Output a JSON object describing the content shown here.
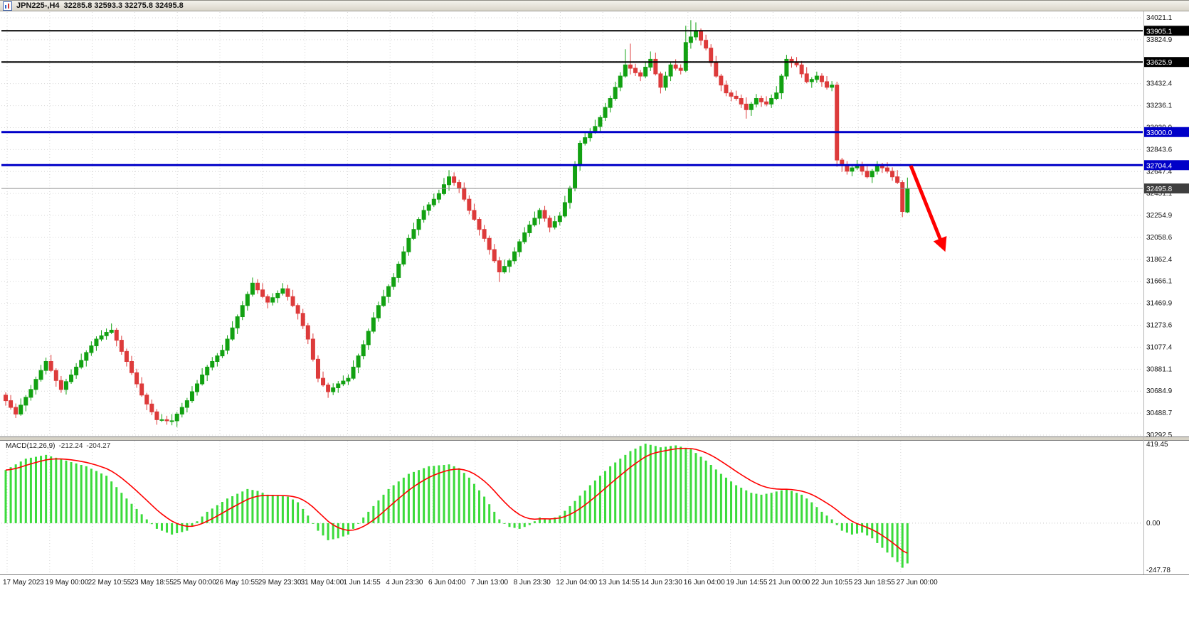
{
  "titlebar": {
    "symbol": "JPN225-,H4",
    "ohlc": "32285.8 32593.3 32275.8 32495.8"
  },
  "icons": {
    "titlebar_chart": "candlestick-chart"
  },
  "colors": {
    "background": "#FFFFFF",
    "grid": "#D6D6D6",
    "bull": "#12A112",
    "bear": "#DD3B3B",
    "macd_histogram": "#3BDB3B",
    "signal": "#FF0000",
    "level_black": "#000000",
    "level_blue": "#0000C8",
    "current_price_line": "#909090",
    "current_price_tag": "#3F3F3F",
    "annotation_red": "#FF0000",
    "splitter": "#D6D2C6",
    "chrome_line": "#808080"
  },
  "indicator": {
    "name": "MACD(12,26,9)",
    "macd_value": "-212.24",
    "signal_value": "-204.27"
  },
  "annotation": {
    "type": "arrow-down-right",
    "color": "#FF0000"
  },
  "chart_data": {
    "type": "candlestick",
    "symbol": "JPN225-",
    "timeframe": "H4",
    "title": "JPN225-,H4 32285.8 32593.3 32275.8 32495.8",
    "last_candle": {
      "open": 32285.8,
      "high": 32593.3,
      "low": 32275.8,
      "close": 32495.8
    },
    "legend_position": "none",
    "grid": true,
    "price_axis": {
      "max": 34021.1,
      "min": 30292.5,
      "tick_labels": [
        "34021.1",
        "33824.9",
        "33628.6",
        "33432.4",
        "33236.1",
        "33039.9",
        "32843.6",
        "32647.4",
        "32451.1",
        "32254.9",
        "32058.6",
        "31862.4",
        "31666.1",
        "31469.9",
        "31273.6",
        "31077.4",
        "30881.1",
        "30684.9",
        "30488.7",
        "30292.5"
      ]
    },
    "time_labels": [
      "17 May 2023",
      "19 May 00:00",
      "22 May 10:55",
      "23 May 18:55",
      "25 May 00:00",
      "26 May 10:55",
      "29 May 23:30",
      "31 May 04:00",
      "1 Jun 14:55",
      "4 Jun 23:30",
      "6 Jun 04:00",
      "7 Jun 13:00",
      "8 Jun 23:30",
      "12 Jun 04:00",
      "13 Jun 14:55",
      "14 Jun 23:30",
      "16 Jun 04:00",
      "19 Jun 14:55",
      "21 Jun 00:00",
      "22 Jun 10:55",
      "23 Jun 18:55",
      "27 Jun 00:00"
    ],
    "horizontal_lines": [
      {
        "price": 33905.1,
        "label": "33905.1",
        "color": "#000000",
        "width": 2
      },
      {
        "price": 33625.9,
        "label": "33625.9",
        "color": "#000000",
        "width": 2
      },
      {
        "price": 33000.0,
        "label": "33000.0",
        "color": "#0000C8",
        "width": 3
      },
      {
        "price": 32704.4,
        "label": "32704.4",
        "color": "#0000C8",
        "width": 3
      }
    ],
    "current_price": {
      "value": 32495.8,
      "label": "32495.8"
    },
    "candles": [
      [
        30650,
        30675,
        30555,
        30600
      ],
      [
        30600,
        30650,
        30520,
        30540
      ],
      [
        30540,
        30575,
        30445,
        30480
      ],
      [
        30480,
        30620,
        30465,
        30560
      ],
      [
        30560,
        30650,
        30505,
        30630
      ],
      [
        30630,
        30740,
        30600,
        30700
      ],
      [
        30700,
        30815,
        30655,
        30790
      ],
      [
        30790,
        30920,
        30770,
        30870
      ],
      [
        30870,
        30985,
        30835,
        30950
      ],
      [
        30950,
        31010,
        30855,
        30870
      ],
      [
        30870,
        30890,
        30725,
        30780
      ],
      [
        30780,
        30820,
        30670,
        30700
      ],
      [
        30700,
        30795,
        30655,
        30770
      ],
      [
        30770,
        30880,
        30750,
        30830
      ],
      [
        30830,
        30935,
        30795,
        30900
      ],
      [
        30900,
        31020,
        30885,
        30960
      ],
      [
        30960,
        31050,
        30905,
        31030
      ],
      [
        31030,
        31130,
        31000,
        31090
      ],
      [
        31090,
        31175,
        31045,
        31150
      ],
      [
        31150,
        31230,
        31130,
        31180
      ],
      [
        31180,
        31245,
        31145,
        31210
      ],
      [
        31210,
        31290,
        31195,
        31230
      ],
      [
        31230,
        31250,
        31085,
        31140
      ],
      [
        31140,
        31180,
        31010,
        31040
      ],
      [
        31040,
        31065,
        30905,
        30950
      ],
      [
        30950,
        31000,
        30830,
        30850
      ],
      [
        30850,
        30885,
        30715,
        30750
      ],
      [
        30750,
        30810,
        30635,
        30650
      ],
      [
        30650,
        30670,
        30515,
        30570
      ],
      [
        30570,
        30610,
        30470,
        30500
      ],
      [
        30500,
        30525,
        30385,
        30430
      ],
      [
        30430,
        30480,
        30410,
        30430
      ],
      [
        30430,
        30465,
        30385,
        30420
      ],
      [
        30420,
        30480,
        30380,
        30420
      ],
      [
        30420,
        30500,
        30365,
        30480
      ],
      [
        30480,
        30580,
        30450,
        30540
      ],
      [
        30540,
        30625,
        30495,
        30600
      ],
      [
        30600,
        30730,
        30580,
        30680
      ],
      [
        30680,
        30785,
        30645,
        30750
      ],
      [
        30750,
        30890,
        30735,
        30830
      ],
      [
        30830,
        30920,
        30775,
        30900
      ],
      [
        30900,
        30990,
        30870,
        30950
      ],
      [
        30950,
        31025,
        30905,
        31000
      ],
      [
        31000,
        31100,
        30980,
        31050
      ],
      [
        31050,
        31185,
        31015,
        31150
      ],
      [
        31150,
        31310,
        31135,
        31250
      ],
      [
        31250,
        31370,
        31195,
        31350
      ],
      [
        31350,
        31490,
        31320,
        31450
      ],
      [
        31450,
        31575,
        31405,
        31550
      ],
      [
        31550,
        31700,
        31530,
        31650
      ],
      [
        31650,
        31685,
        31555,
        31590
      ],
      [
        31590,
        31650,
        31515,
        31530
      ],
      [
        31530,
        31550,
        31425,
        31480
      ],
      [
        31480,
        31560,
        31450,
        31520
      ],
      [
        31520,
        31585,
        31475,
        31560
      ],
      [
        31560,
        31650,
        31540,
        31600
      ],
      [
        31600,
        31635,
        31495,
        31530
      ],
      [
        31530,
        31590,
        31435,
        31450
      ],
      [
        31450,
        31470,
        31325,
        31380
      ],
      [
        31380,
        31420,
        31240,
        31270
      ],
      [
        31270,
        31295,
        31105,
        31150
      ],
      [
        31150,
        31200,
        30950,
        30970
      ],
      [
        30970,
        31005,
        30765,
        30800
      ],
      [
        30800,
        30860,
        30725,
        30740
      ],
      [
        30740,
        30760,
        30625,
        30680
      ],
      [
        30680,
        30755,
        30650,
        30715
      ],
      [
        30715,
        30775,
        30670,
        30750
      ],
      [
        30750,
        30825,
        30730,
        30775
      ],
      [
        30775,
        30835,
        30740,
        30800
      ],
      [
        30800,
        30960,
        30785,
        30900
      ],
      [
        30900,
        31020,
        30845,
        31000
      ],
      [
        31000,
        31140,
        30970,
        31100
      ],
      [
        31100,
        31245,
        31055,
        31220
      ],
      [
        31220,
        31390,
        31200,
        31340
      ],
      [
        31340,
        31485,
        31305,
        31450
      ],
      [
        31450,
        31590,
        31435,
        31530
      ],
      [
        31530,
        31640,
        31475,
        31620
      ],
      [
        31620,
        31740,
        31590,
        31700
      ],
      [
        31700,
        31845,
        31655,
        31820
      ],
      [
        31820,
        31980,
        31800,
        31930
      ],
      [
        31930,
        32085,
        31895,
        32050
      ],
      [
        32050,
        32190,
        32035,
        32130
      ],
      [
        32130,
        32240,
        32075,
        32220
      ],
      [
        32220,
        32340,
        32190,
        32300
      ],
      [
        32300,
        32375,
        32255,
        32350
      ],
      [
        32350,
        32450,
        32330,
        32400
      ],
      [
        32400,
        32485,
        32365,
        32450
      ],
      [
        32450,
        32590,
        32435,
        32530
      ],
      [
        32530,
        32660,
        32475,
        32600
      ],
      [
        32600,
        32640,
        32520,
        32550
      ],
      [
        32550,
        32575,
        32455,
        32500
      ],
      [
        32500,
        32550,
        32380,
        32400
      ],
      [
        32400,
        32435,
        32265,
        32300
      ],
      [
        32300,
        32360,
        32205,
        32220
      ],
      [
        32220,
        32240,
        32075,
        32130
      ],
      [
        32130,
        32170,
        32020,
        32050
      ],
      [
        32050,
        32075,
        31905,
        31950
      ],
      [
        31950,
        32000,
        31830,
        31850
      ],
      [
        31850,
        31885,
        31660,
        31750
      ],
      [
        31750,
        31860,
        31735,
        31800
      ],
      [
        31800,
        31870,
        31745,
        31850
      ],
      [
        31850,
        31970,
        31820,
        31930
      ],
      [
        31930,
        32045,
        31885,
        32020
      ],
      [
        32020,
        32150,
        32000,
        32100
      ],
      [
        32100,
        32205,
        32065,
        32170
      ],
      [
        32170,
        32290,
        32155,
        32230
      ],
      [
        32230,
        32320,
        32175,
        32300
      ],
      [
        32300,
        32340,
        32200,
        32230
      ],
      [
        32230,
        32255,
        32105,
        32150
      ],
      [
        32150,
        32250,
        32130,
        32200
      ],
      [
        32200,
        32285,
        32165,
        32250
      ],
      [
        32250,
        32430,
        32235,
        32370
      ],
      [
        32370,
        32520,
        32315,
        32500
      ],
      [
        32500,
        32740,
        32470,
        32700
      ],
      [
        32700,
        32925,
        32655,
        32900
      ],
      [
        32900,
        33000,
        32880,
        32950
      ],
      [
        32950,
        33035,
        32915,
        33000
      ],
      [
        33000,
        33110,
        32985,
        33050
      ],
      [
        33050,
        33150,
        32995,
        33130
      ],
      [
        33130,
        33260,
        33100,
        33220
      ],
      [
        33220,
        33325,
        33175,
        33300
      ],
      [
        33300,
        33450,
        33280,
        33400
      ],
      [
        33400,
        33535,
        33365,
        33500
      ],
      [
        33500,
        33740,
        33485,
        33600
      ],
      [
        33600,
        33790,
        33515,
        33570
      ],
      [
        33570,
        33610,
        33500,
        33530
      ],
      [
        33530,
        33555,
        33455,
        33500
      ],
      [
        33500,
        33630,
        33480,
        33580
      ],
      [
        33580,
        33720,
        33545,
        33650
      ],
      [
        33650,
        33710,
        33505,
        33520
      ],
      [
        33520,
        33540,
        33345,
        33400
      ],
      [
        33400,
        33540,
        33370,
        33500
      ],
      [
        33500,
        33625,
        33455,
        33600
      ],
      [
        33600,
        33650,
        33550,
        33570
      ],
      [
        33570,
        33605,
        33515,
        33550
      ],
      [
        33550,
        33950,
        33535,
        33800
      ],
      [
        33800,
        34000,
        33745,
        33850
      ],
      [
        33850,
        33980,
        33820,
        33900
      ],
      [
        33900,
        33925,
        33775,
        33820
      ],
      [
        33820,
        33870,
        33730,
        33750
      ],
      [
        33750,
        33785,
        33585,
        33620
      ],
      [
        33620,
        33680,
        33485,
        33500
      ],
      [
        33500,
        33520,
        33365,
        33420
      ],
      [
        33420,
        33460,
        33320,
        33350
      ],
      [
        33350,
        33375,
        33275,
        33320
      ],
      [
        33320,
        33370,
        33280,
        33300
      ],
      [
        33300,
        33335,
        33215,
        33250
      ],
      [
        33250,
        33310,
        33120,
        33200
      ],
      [
        33200,
        33270,
        33145,
        33250
      ],
      [
        33250,
        33340,
        33220,
        33300
      ],
      [
        33300,
        33325,
        33225,
        33270
      ],
      [
        33270,
        33320,
        33230,
        33250
      ],
      [
        33250,
        33335,
        33215,
        33300
      ],
      [
        33300,
        33410,
        33285,
        33350
      ],
      [
        33350,
        33520,
        33295,
        33500
      ],
      [
        33500,
        33690,
        33470,
        33650
      ],
      [
        33650,
        33675,
        33575,
        33620
      ],
      [
        33620,
        33670,
        33580,
        33600
      ],
      [
        33600,
        33635,
        33485,
        33520
      ],
      [
        33520,
        33580,
        33435,
        33450
      ],
      [
        33450,
        33490,
        33395,
        33470
      ],
      [
        33470,
        33540,
        33440,
        33500
      ],
      [
        33500,
        33525,
        33405,
        33450
      ],
      [
        33450,
        33500,
        33380,
        33400
      ],
      [
        33400,
        33455,
        33365,
        33420
      ],
      [
        33420,
        33450,
        32690,
        32750
      ],
      [
        32750,
        32770,
        32645,
        32700
      ],
      [
        32700,
        32740,
        32620,
        32650
      ],
      [
        32650,
        32705,
        32605,
        32680
      ],
      [
        32680,
        32750,
        32660,
        32700
      ],
      [
        32700,
        32735,
        32615,
        32650
      ],
      [
        32650,
        32710,
        32585,
        32600
      ],
      [
        32600,
        32670,
        32545,
        32650
      ],
      [
        32650,
        32740,
        32620,
        32700
      ],
      [
        32700,
        32725,
        32635,
        32680
      ],
      [
        32680,
        32730,
        32630,
        32650
      ],
      [
        32650,
        32685,
        32565,
        32600
      ],
      [
        32600,
        32660,
        32535,
        32550
      ],
      [
        32550,
        32570,
        32240,
        32290
      ],
      [
        32285.8,
        32593.3,
        32275.8,
        32495.8
      ]
    ],
    "macd": {
      "params": "12,26,9",
      "value": -212.24,
      "signal": -204.27,
      "signal_period": 9,
      "scale": {
        "max": 419.45,
        "zero": 0.0,
        "min": -247.78
      },
      "scale_labels": [
        "419.45",
        "0.00",
        "-247.78"
      ],
      "histogram": [
        280,
        295,
        310,
        325,
        340,
        345,
        350,
        355,
        360,
        352,
        345,
        337,
        330,
        322,
        315,
        307,
        300,
        287,
        275,
        262,
        250,
        220,
        190,
        160,
        130,
        102,
        75,
        47,
        20,
        -5,
        -30,
        -40,
        -50,
        -60,
        -53,
        -47,
        -40,
        -15,
        10,
        35,
        60,
        77,
        95,
        112,
        130,
        142,
        155,
        167,
        180,
        175,
        170,
        160,
        150,
        147,
        145,
        142,
        140,
        125,
        110,
        75,
        40,
        0,
        -40,
        -65,
        -90,
        -85,
        -80,
        -70,
        -60,
        -30,
        0,
        30,
        60,
        90,
        120,
        150,
        180,
        200,
        220,
        240,
        260,
        270,
        280,
        290,
        300,
        302,
        305,
        307,
        310,
        300,
        290,
        265,
        240,
        207,
        173,
        140,
        100,
        60,
        20,
        0,
        -20,
        -25,
        -30,
        -20,
        -10,
        10,
        30,
        25,
        20,
        30,
        40,
        65,
        90,
        117,
        145,
        172,
        200,
        225,
        250,
        275,
        300,
        320,
        340,
        360,
        380,
        393,
        407,
        419,
        413,
        407,
        400,
        403,
        407,
        410,
        403,
        397,
        390,
        370,
        350,
        330,
        307,
        283,
        260,
        240,
        220,
        200,
        187,
        173,
        160,
        155,
        150,
        155,
        160,
        167,
        173,
        180,
        170,
        160,
        150,
        130,
        110,
        85,
        60,
        40,
        20,
        -10,
        -40,
        -50,
        -60,
        -55,
        -50,
        -65,
        -80,
        -105,
        -130,
        -155,
        -180,
        -205,
        -235,
        -212.24
      ]
    }
  }
}
